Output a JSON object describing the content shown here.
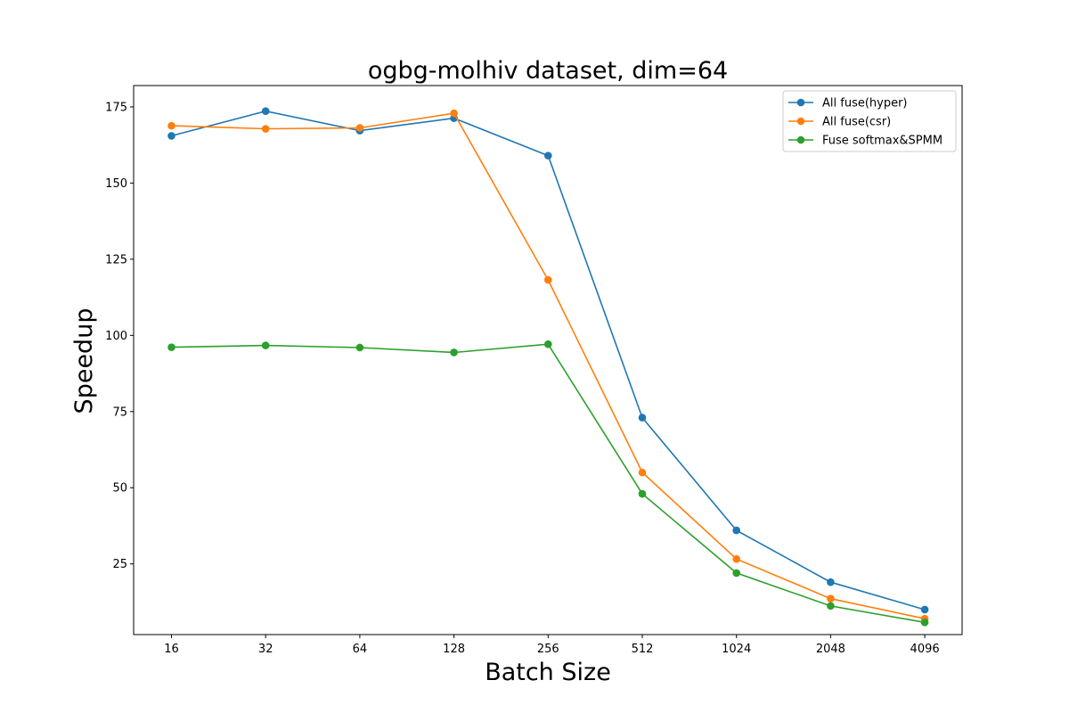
{
  "chart_data": {
    "type": "line",
    "title": "ogbg-molhiv dataset, dim=64",
    "xlabel": "Batch Size",
    "ylabel": "Speedup",
    "categories": [
      "16",
      "32",
      "64",
      "128",
      "256",
      "512",
      "1024",
      "2048",
      "4096"
    ],
    "yticks": [
      25,
      50,
      75,
      100,
      125,
      150,
      175
    ],
    "ylim": [
      1.8,
      182
    ],
    "grid": false,
    "legend_position": "top-right",
    "series": [
      {
        "name": "All fuse(hyper)",
        "color": "#1f77b4",
        "values": [
          165.5,
          173.6,
          167.2,
          171.3,
          159.0,
          73.0,
          36.0,
          19.0,
          10.0
        ]
      },
      {
        "name": "All fuse(csr)",
        "color": "#ff7f0e",
        "values": [
          168.8,
          167.8,
          168.1,
          172.9,
          118.2,
          55.0,
          26.6,
          13.6,
          7.0
        ]
      },
      {
        "name": "Fuse softmax&SPMM",
        "color": "#2ca02c",
        "values": [
          96.1,
          96.7,
          96.0,
          94.4,
          97.1,
          48.0,
          22.0,
          11.2,
          5.8
        ]
      }
    ]
  }
}
